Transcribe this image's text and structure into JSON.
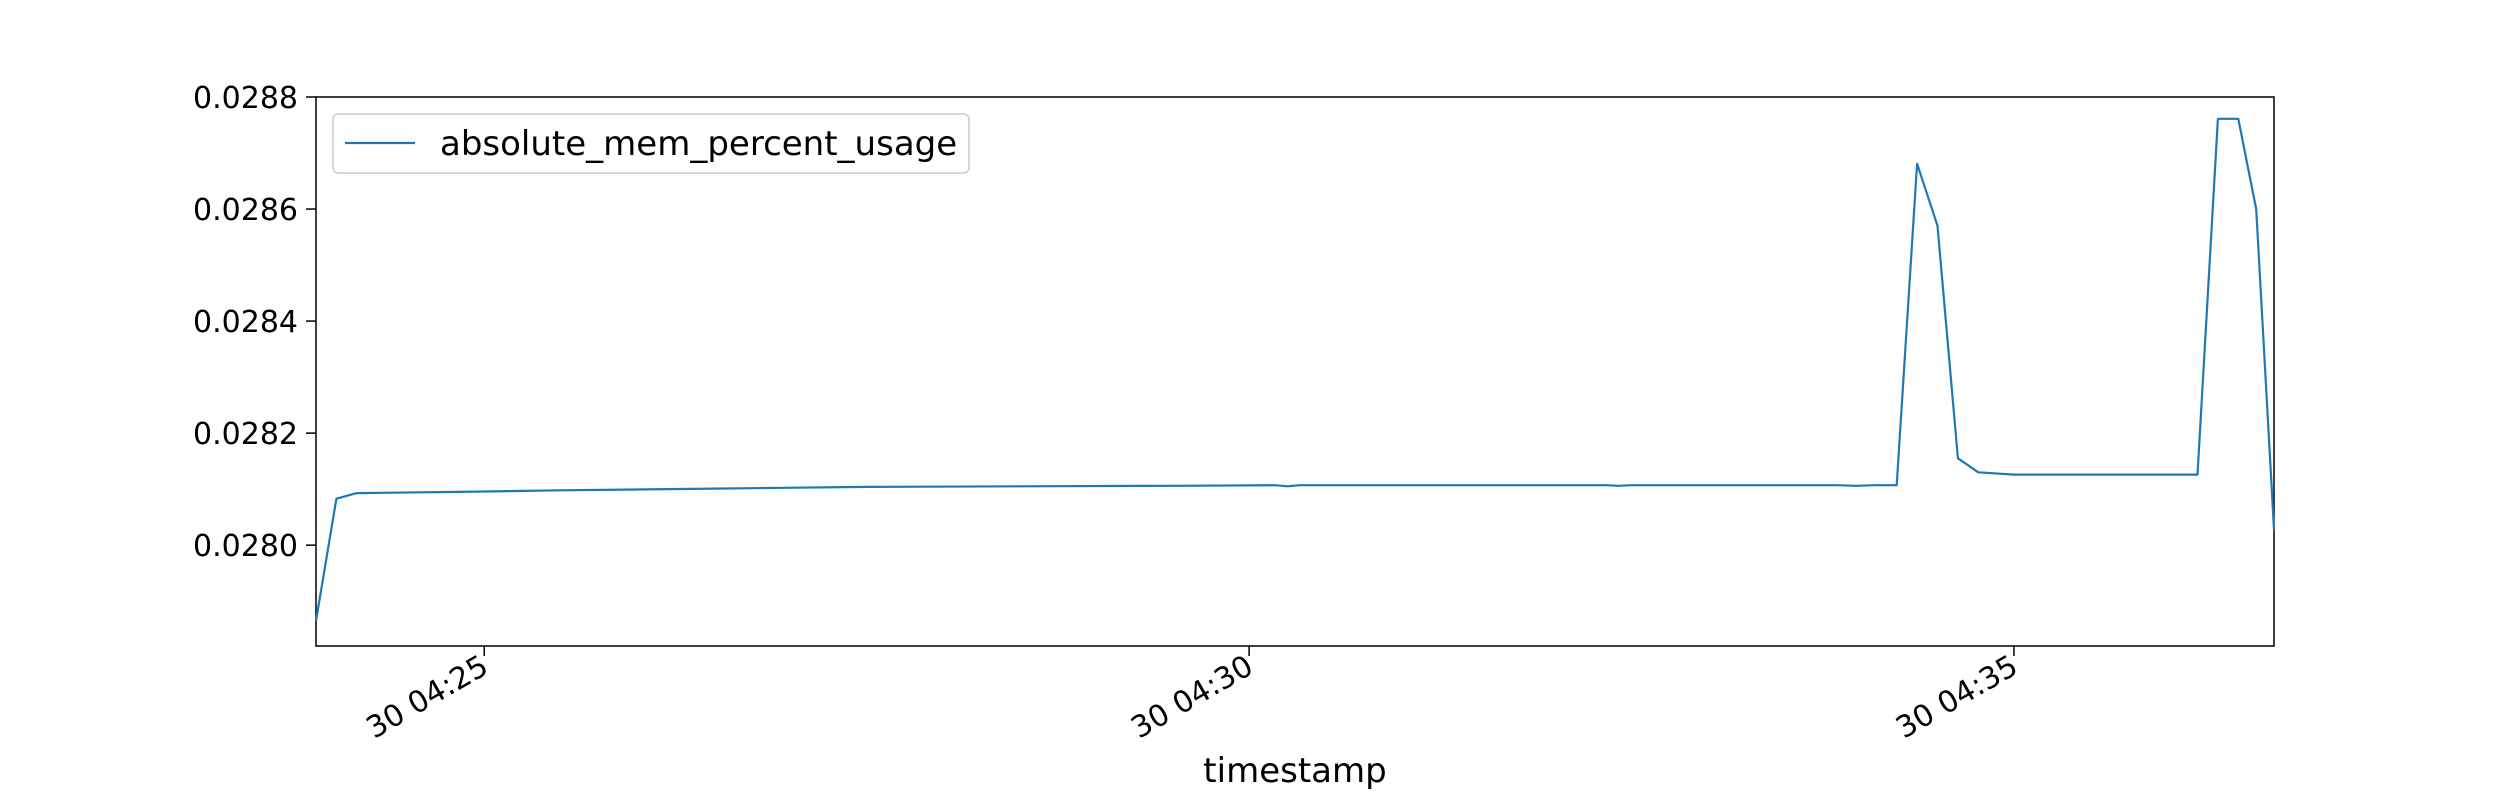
{
  "chart_data": {
    "type": "line",
    "title": "",
    "xlabel": "timestamp",
    "ylabel": "",
    "xlim": [
      "30 04:23:54",
      "30 04:36:42"
    ],
    "ylim": [
      0.02782,
      0.0288
    ],
    "grid": false,
    "legend_placement": "upper-left",
    "series_color": "#1f77b4",
    "x_ticks": [
      {
        "value": "30 04:25:00",
        "label": "30 04:25"
      },
      {
        "value": "30 04:30:00",
        "label": "30 04:30"
      },
      {
        "value": "30 04:35:00",
        "label": "30 04:35"
      }
    ],
    "y_ticks": [
      {
        "value": 0.028,
        "label": "0.0280"
      },
      {
        "value": 0.0282,
        "label": "0.0282"
      },
      {
        "value": 0.0284,
        "label": "0.0284"
      },
      {
        "value": 0.0286,
        "label": "0.0286"
      },
      {
        "value": 0.0288,
        "label": "0.0288"
      }
    ],
    "series": [
      {
        "name": "absolute_mem_percent_usage",
        "color": "#1f77b4",
        "points": [
          {
            "x": "30 04:23:54",
            "y": 0.027865
          },
          {
            "x": "30 04:24:02",
            "y": 0.028083
          },
          {
            "x": "30 04:24:10",
            "y": 0.028093
          },
          {
            "x": "30 04:24:50",
            "y": 0.028095
          },
          {
            "x": "30 04:25:30",
            "y": 0.028098
          },
          {
            "x": "30 04:26:30",
            "y": 0.028101
          },
          {
            "x": "30 04:27:30",
            "y": 0.028104
          },
          {
            "x": "30 04:28:30",
            "y": 0.028105
          },
          {
            "x": "30 04:29:30",
            "y": 0.028106
          },
          {
            "x": "30 04:30:10",
            "y": 0.028107
          },
          {
            "x": "30 04:30:15",
            "y": 0.028105
          },
          {
            "x": "30 04:30:20",
            "y": 0.028107
          },
          {
            "x": "30 04:31:30",
            "y": 0.028107
          },
          {
            "x": "30 04:32:20",
            "y": 0.028107
          },
          {
            "x": "30 04:32:25",
            "y": 0.028106
          },
          {
            "x": "30 04:32:30",
            "y": 0.028107
          },
          {
            "x": "30 04:33:50",
            "y": 0.028107
          },
          {
            "x": "30 04:33:58",
            "y": 0.028106
          },
          {
            "x": "30 04:34:06",
            "y": 0.028107
          },
          {
            "x": "30 04:34:14",
            "y": 0.028107
          },
          {
            "x": "30 04:34:22",
            "y": 0.028681
          },
          {
            "x": "30 04:34:30",
            "y": 0.02857
          },
          {
            "x": "30 04:34:38",
            "y": 0.028155
          },
          {
            "x": "30 04:34:46",
            "y": 0.02813
          },
          {
            "x": "30 04:35:00",
            "y": 0.028126
          },
          {
            "x": "30 04:36:00",
            "y": 0.028126
          },
          {
            "x": "30 04:36:12",
            "y": 0.028126
          },
          {
            "x": "30 04:36:20",
            "y": 0.028761
          },
          {
            "x": "30 04:36:28",
            "y": 0.028761
          },
          {
            "x": "30 04:36:35",
            "y": 0.0286
          },
          {
            "x": "30 04:36:42",
            "y": 0.028028
          }
        ]
      }
    ]
  }
}
